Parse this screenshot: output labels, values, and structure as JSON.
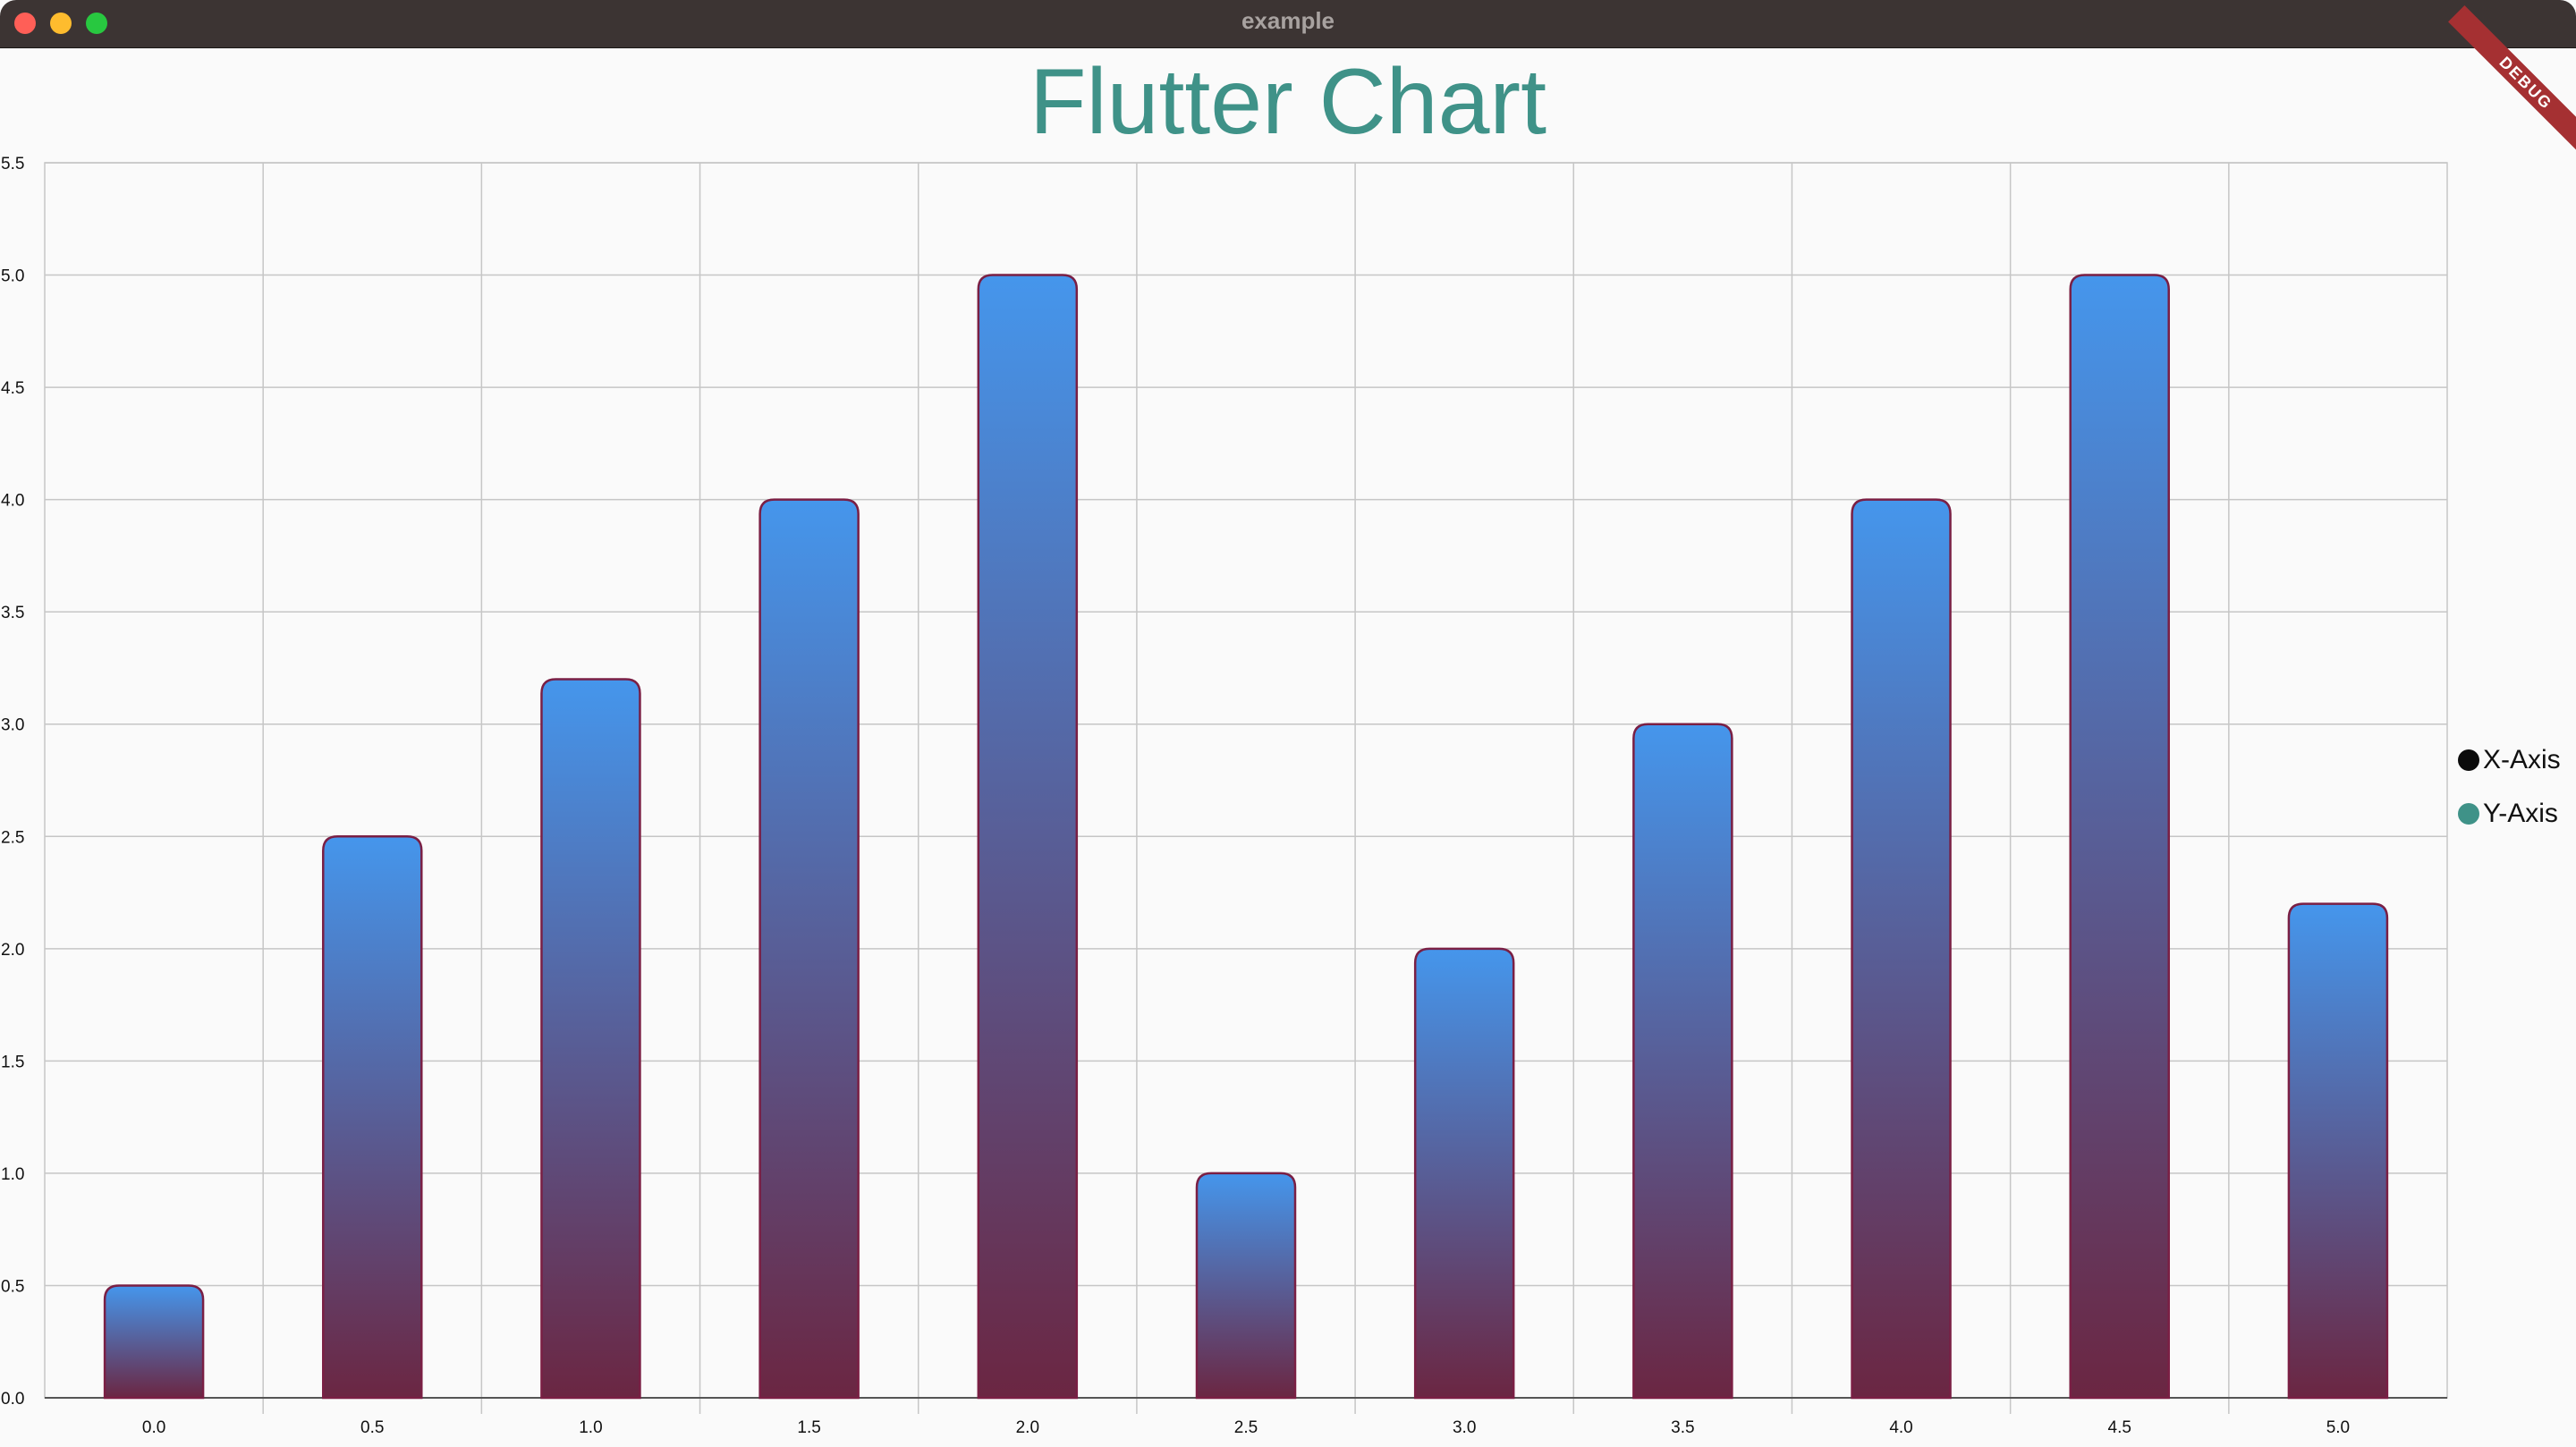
{
  "window": {
    "title": "example"
  },
  "debug_banner": "DEBUG",
  "colors": {
    "title": "#3f9288",
    "bar_top": "#4596ec",
    "bar_bottom": "#6b2642",
    "bar_border": "#7a1f44",
    "grid": "#c6c6c6",
    "axis": "#555555"
  },
  "legend": [
    {
      "label": "X-Axis",
      "color": "#0b0b0b"
    },
    {
      "label": "Y-Axis",
      "color": "#3f9288"
    }
  ],
  "chart_data": {
    "type": "bar",
    "title": "Flutter Chart",
    "categories": [
      "0.0",
      "0.5",
      "1.0",
      "1.5",
      "2.0",
      "2.5",
      "3.0",
      "3.5",
      "4.0",
      "4.5",
      "5.0"
    ],
    "values": [
      0.5,
      2.5,
      3.2,
      4.0,
      5.0,
      1.0,
      2.0,
      3.0,
      4.0,
      5.0,
      2.2
    ],
    "y_ticks": [
      "0.0",
      "0.5",
      "1.0",
      "1.5",
      "2.0",
      "2.5",
      "3.0",
      "3.5",
      "4.0",
      "4.5",
      "5.0",
      "5.5"
    ],
    "ylim": [
      0,
      5.5
    ],
    "grid": true,
    "legend_position": "right"
  }
}
